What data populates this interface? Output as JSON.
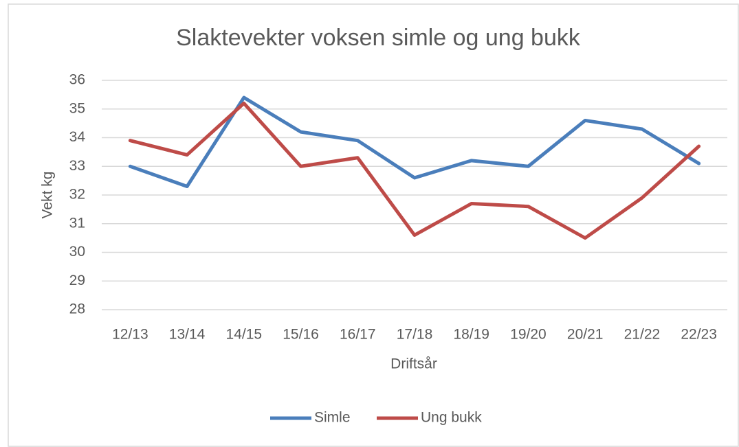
{
  "chart_data": {
    "type": "line",
    "title": "Slaktevekter voksen simle og ung bukk",
    "x_label": "Driftsår",
    "y_label": "Vekt kg",
    "categories": [
      "12/13",
      "13/14",
      "14/15",
      "15/16",
      "16/17",
      "17/18",
      "18/19",
      "19/20",
      "20/21",
      "21/22",
      "22/23"
    ],
    "series": [
      {
        "name": "Simle",
        "color": "#4a7ebb",
        "values": [
          33.0,
          32.3,
          35.4,
          34.2,
          33.9,
          32.6,
          33.2,
          33.0,
          34.6,
          34.3,
          33.1
        ]
      },
      {
        "name": "Ung bukk",
        "color": "#be4b48",
        "values": [
          33.9,
          33.4,
          35.2,
          33.0,
          33.3,
          30.6,
          31.7,
          31.6,
          30.5,
          31.9,
          33.7
        ]
      }
    ],
    "ylim": [
      28,
      36
    ],
    "yticks": [
      28,
      29,
      30,
      31,
      32,
      33,
      34,
      35,
      36
    ],
    "grid": true,
    "legend": "bottom"
  }
}
